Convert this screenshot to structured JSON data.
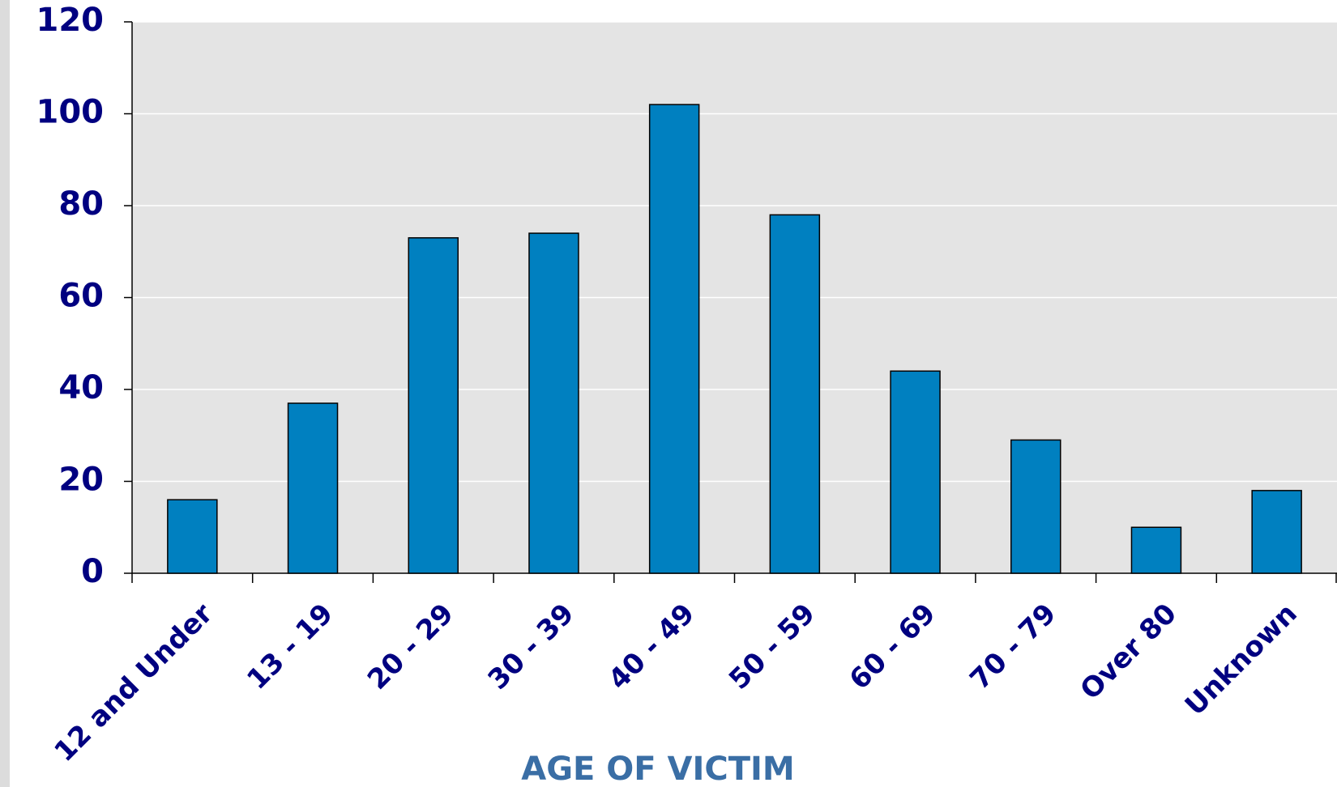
{
  "chart_data": {
    "type": "bar",
    "x_label": "AGE OF VICTIM",
    "categories": [
      "12 and Under",
      "13 - 19",
      "20 - 29",
      "30 - 39",
      "40 - 49",
      "50 - 59",
      "60 - 69",
      "70 - 79",
      "Over 80",
      "Unknown"
    ],
    "values": [
      16,
      37,
      73,
      74,
      102,
      78,
      44,
      29,
      10,
      18
    ],
    "color": "#0080c0",
    "ylim": [
      0,
      120
    ],
    "yticks": [
      0,
      20,
      40,
      60,
      80,
      100,
      120
    ],
    "grid": true
  }
}
